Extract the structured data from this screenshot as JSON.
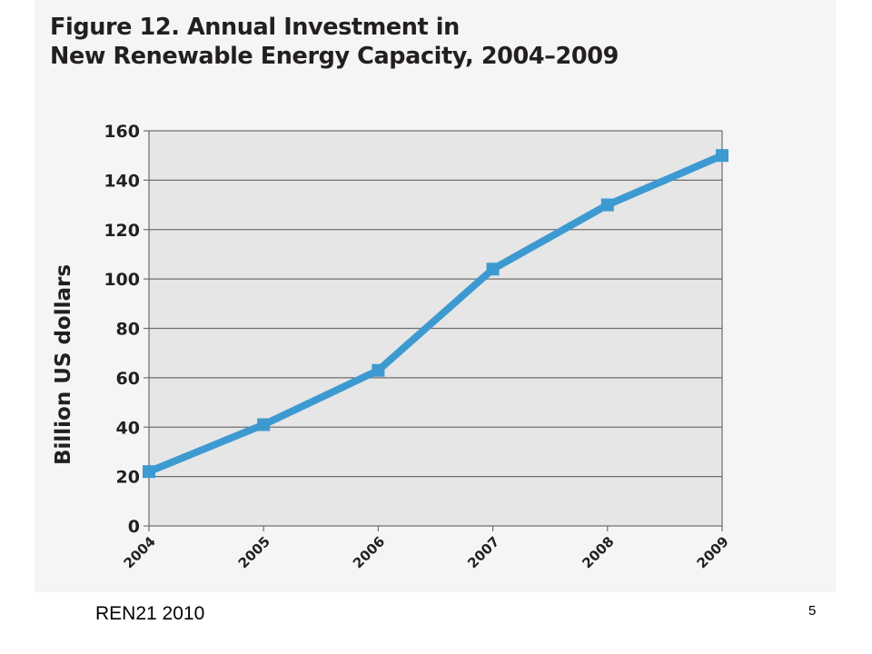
{
  "page": {
    "source": "REN21 2010",
    "page_number": "5"
  },
  "colors": {
    "line": "#3d9ad1",
    "plot_bg": "#e6e6e7",
    "grid": "#6f6f6f",
    "text": "#231f20"
  },
  "chart_data": {
    "type": "line",
    "title_lines": [
      "Figure 12. Annual Investment in",
      "New Renewable Energy Capacity, 2004–2009"
    ],
    "xlabel": "",
    "ylabel": "Billion US dollars",
    "categories": [
      "2004",
      "2005",
      "2006",
      "2007",
      "2008",
      "2009"
    ],
    "series": [
      {
        "values": [
          22,
          41,
          63,
          104,
          130,
          150
        ]
      }
    ],
    "ylim": [
      0,
      160
    ],
    "yticks": [
      0,
      20,
      40,
      60,
      80,
      100,
      120,
      140,
      160
    ],
    "grid": true,
    "legend": "none"
  }
}
